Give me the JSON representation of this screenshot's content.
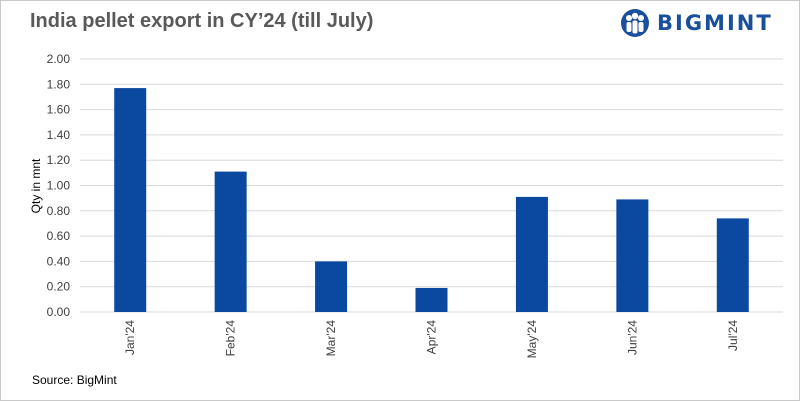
{
  "title": "India pellet export in CY’24 (till July)",
  "logo": {
    "text": "BIGMINT",
    "icon": "bigmint-people-logo-icon"
  },
  "source": "Source: BigMint",
  "colors": {
    "bar": "#0b49a0",
    "brand": "#1a4f9c",
    "grid": "#d9d9d9",
    "title": "#595959"
  },
  "chart_data": {
    "type": "bar",
    "categories": [
      "Jan'24",
      "Feb'24",
      "Mar'24",
      "Apr'24",
      "May'24",
      "Jun'24",
      "Jul'24"
    ],
    "values": [
      1.77,
      1.11,
      0.4,
      0.19,
      0.91,
      0.89,
      0.74
    ],
    "ylabel": "Qty in mnt",
    "xlabel": "",
    "ylim": [
      0,
      2.0
    ],
    "yticks": [
      "0.00",
      "0.20",
      "0.40",
      "0.60",
      "0.80",
      "1.00",
      "1.20",
      "1.40",
      "1.60",
      "1.80",
      "2.00"
    ],
    "grid": true,
    "legend": "none"
  }
}
